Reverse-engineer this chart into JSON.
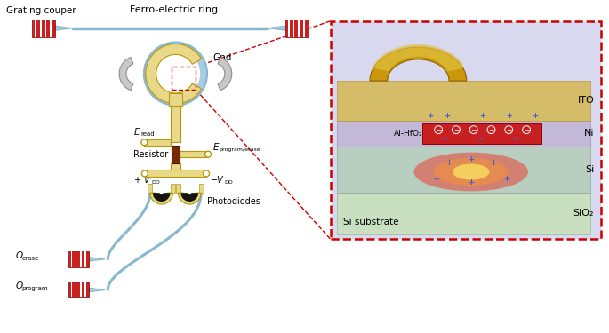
{
  "fig_width": 6.85,
  "fig_height": 3.75,
  "dpi": 100,
  "colors": {
    "white": "#ffffff",
    "black": "#000000",
    "blue_line": "#88b8d0",
    "blue_light": "#a8cce0",
    "gold": "#e8d888",
    "gold_mid": "#d4b840",
    "gold_dark": "#b8980a",
    "gold_3d": "#c8a020",
    "brown": "#7a2800",
    "gray_paddle": "#a8a8a8",
    "gray_paddle_edge": "#787878",
    "red_grating": "#cc2020",
    "red_box_border": "#cc0000",
    "inset_bg": "#d8d8ee",
    "inset_purple": "#c0b8d8",
    "inset_si": "#b0c8c0",
    "inset_sio2": "#c8e0c8",
    "inset_ito": "#d8c070",
    "inset_ito_top": "#e8d080",
    "inset_red_layer": "#d03030",
    "glow_red": "#e84030",
    "glow_orange": "#f09040",
    "glow_yellow": "#f8e060",
    "charge_blue": "#4060d0"
  },
  "labels": {
    "grating_couper": "Grating couper",
    "ferro_ring": "Ferro-electric ring",
    "gnd": "Gnd",
    "e_read": "E",
    "e_read_sub": "read",
    "resistor": "Resistor",
    "e_prog": "E",
    "e_prog_sub": "program/erase",
    "vdd_pos": "+",
    "vdd_pos_V": "V",
    "vdd_pos_sub": "DD",
    "vdd_neg": "−",
    "vdd_neg_V": "V",
    "vdd_neg_sub": "DD",
    "photodiodes": "Photodiodes",
    "o_erase": "O",
    "o_erase_sub": "erase",
    "o_program": "O",
    "o_program_sub": "program",
    "ito": "ITO",
    "al_hfo2": "Al-HfO₂",
    "ni": "Ni",
    "si": "Si",
    "sio2": "SiO₂",
    "si_substrate": "Si substrate"
  }
}
